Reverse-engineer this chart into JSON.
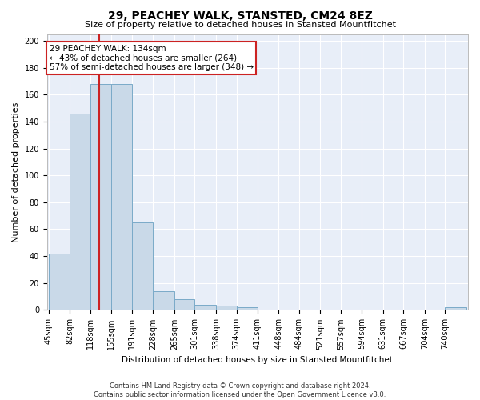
{
  "title": "29, PEACHEY WALK, STANSTED, CM24 8EZ",
  "subtitle": "Size of property relative to detached houses in Stansted Mountfitchet",
  "xlabel": "Distribution of detached houses by size in Stansted Mountfitchet",
  "ylabel": "Number of detached properties",
  "footer_line1": "Contains HM Land Registry data © Crown copyright and database right 2024.",
  "footer_line2": "Contains public sector information licensed under the Open Government Licence v3.0.",
  "annotation_title": "29 PEACHEY WALK: 134sqm",
  "annotation_line2": "← 43% of detached houses are smaller (264)",
  "annotation_line3": "57% of semi-detached houses are larger (348) →",
  "property_size": 134,
  "bin_edges": [
    45,
    82,
    118,
    155,
    191,
    228,
    265,
    301,
    338,
    374,
    411,
    448,
    484,
    521,
    557,
    594,
    631,
    667,
    704,
    740,
    777
  ],
  "bin_counts": [
    42,
    146,
    168,
    168,
    65,
    14,
    8,
    4,
    3,
    2,
    0,
    0,
    0,
    0,
    0,
    0,
    0,
    0,
    0,
    2
  ],
  "bar_color": "#c9d9e8",
  "bar_edge_color": "#7aaac8",
  "red_line_color": "#cc2222",
  "annotation_box_color": "#cc2222",
  "grid_color": "#ffffff",
  "background_color": "#e8eef8",
  "ylim": [
    0,
    205
  ],
  "yticks": [
    0,
    20,
    40,
    60,
    80,
    100,
    120,
    140,
    160,
    180,
    200
  ],
  "title_fontsize": 10,
  "subtitle_fontsize": 8,
  "ylabel_fontsize": 8,
  "xlabel_fontsize": 7.5,
  "tick_fontsize": 7,
  "annotation_fontsize": 7.5,
  "footer_fontsize": 6
}
